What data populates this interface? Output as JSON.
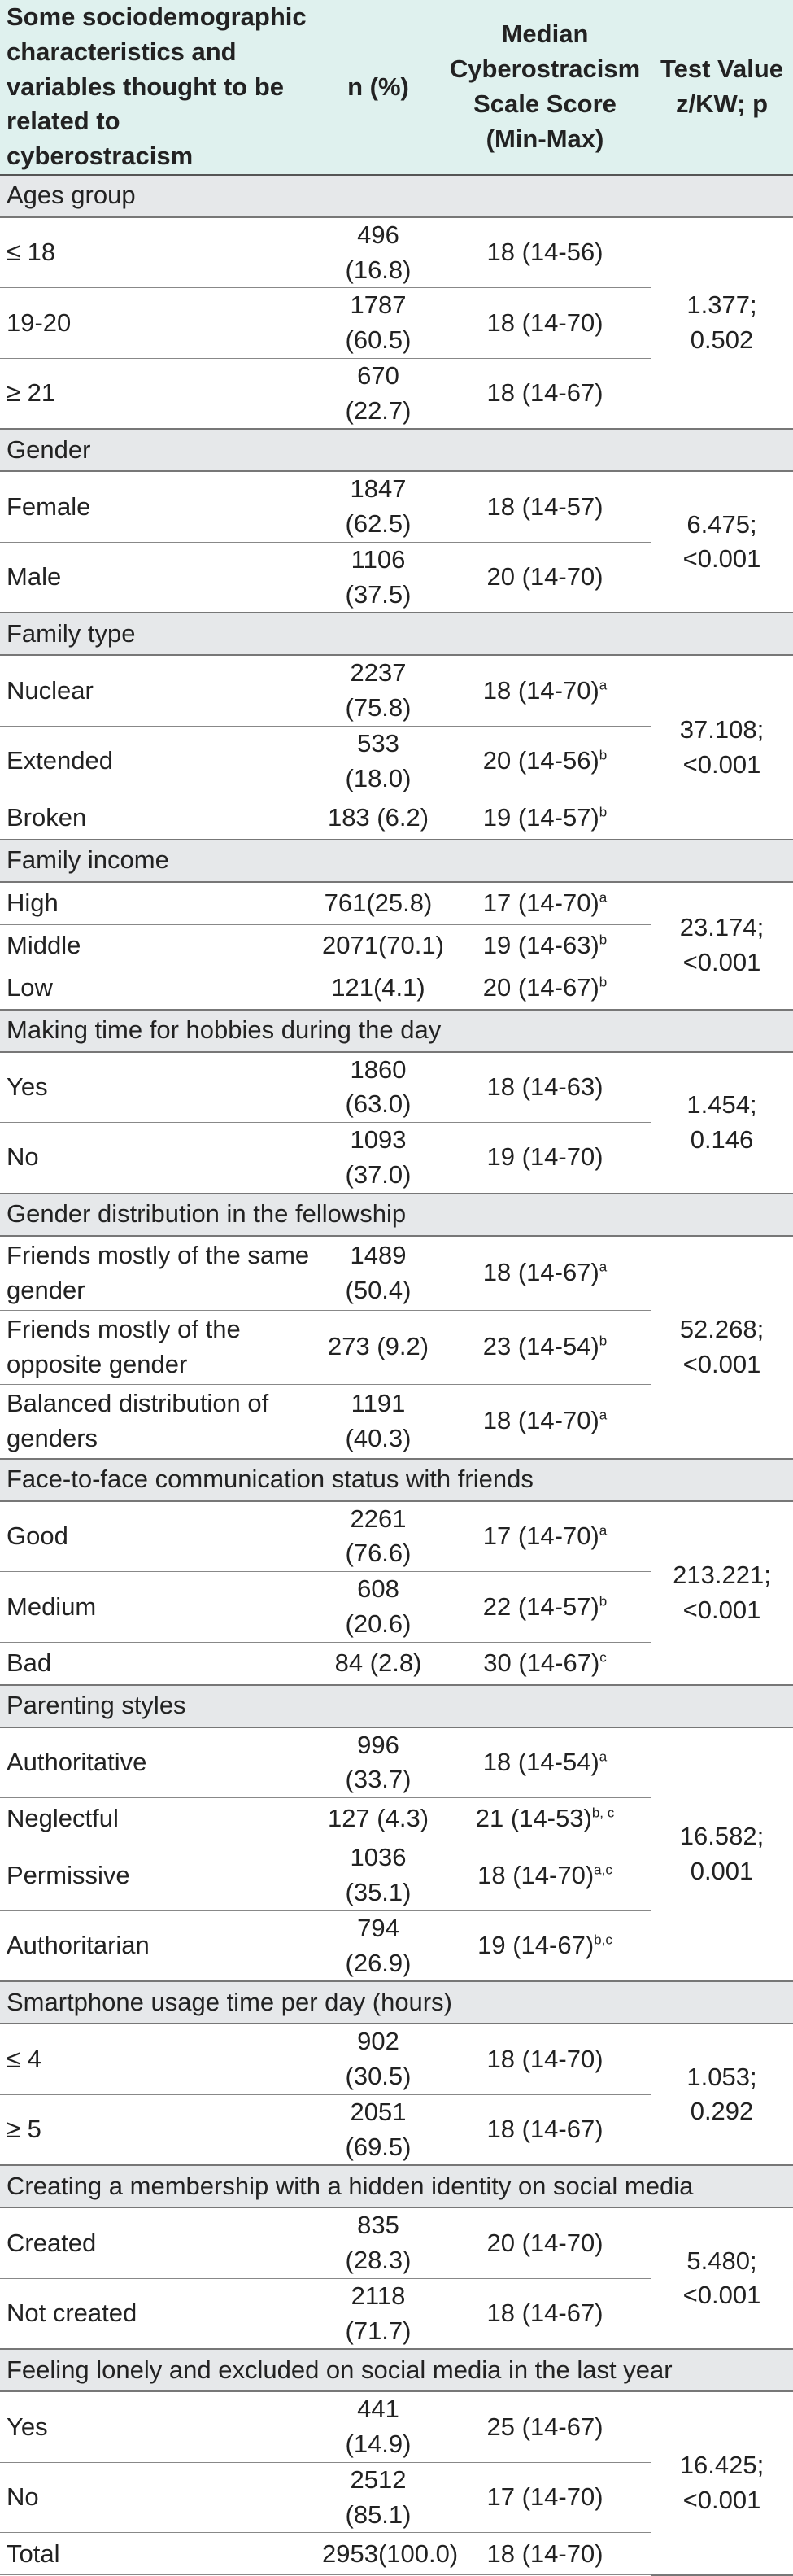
{
  "header": {
    "col1": "Some sociodemographic characteristics and variables thought to be related to cyberostracism",
    "col2": "n (%)",
    "col3": "Median Cyberostracism Scale Score (Min-Max)",
    "col4": "Test Value z/KW; p"
  },
  "groups": [
    {
      "title": "Ages group",
      "test": "1.377; 0.502",
      "rows": [
        {
          "label": "≤ 18",
          "n": "496 (16.8)",
          "median": "18 (14-56)",
          "sup": ""
        },
        {
          "label": "19-20",
          "n": "1787 (60.5)",
          "median": "18 (14-70)",
          "sup": ""
        },
        {
          "label": "≥ 21",
          "n": "670 (22.7)",
          "median": "18 (14-67)",
          "sup": ""
        }
      ]
    },
    {
      "title": "Gender",
      "test": "6.475;<0.001",
      "rows": [
        {
          "label": "Female",
          "n": "1847 (62.5)",
          "median": "18 (14-57)",
          "sup": ""
        },
        {
          "label": "Male",
          "n": "1106 (37.5)",
          "median": "20 (14-70)",
          "sup": ""
        }
      ]
    },
    {
      "title": "Family type",
      "test": "37.108;<0.001",
      "rows": [
        {
          "label": "Nuclear",
          "n": "2237 (75.8)",
          "median": "18 (14-70)",
          "sup": "a"
        },
        {
          "label": "Extended",
          "n": "533 (18.0)",
          "median": "20 (14-56)",
          "sup": "b"
        },
        {
          "label": "Broken",
          "n": "183 (6.2)",
          "median": "19 (14-57)",
          "sup": "b"
        }
      ]
    },
    {
      "title": "Family income",
      "test": "23.174;<0.001",
      "rows": [
        {
          "label": "High",
          "n": "761(25.8)",
          "median": "17 (14-70)",
          "sup": "a"
        },
        {
          "label": "Middle",
          "n": "2071(70.1)",
          "median": "19 (14-63)",
          "sup": "b"
        },
        {
          "label": "Low",
          "n": "121(4.1)",
          "median": "20 (14-67)",
          "sup": "b"
        }
      ]
    },
    {
      "title": "Making time for hobbies during the day",
      "test": "1.454; 0.146",
      "rows": [
        {
          "label": "Yes",
          "n": "1860 (63.0)",
          "median": "18 (14-63)",
          "sup": ""
        },
        {
          "label": "No",
          "n": "1093 (37.0)",
          "median": "19 (14-70)",
          "sup": ""
        }
      ]
    },
    {
      "title": "Gender distribution in the fellowship",
      "test": "52.268; <0.001",
      "rows": [
        {
          "label": "Friends mostly of the same gender",
          "n": "1489 (50.4)",
          "median": "18 (14-67)",
          "sup": "a",
          "tall": true
        },
        {
          "label": "Friends mostly of the opposite gender",
          "n": "273 (9.2)",
          "median": "23 (14-54)",
          "sup": "b",
          "tall": true
        },
        {
          "label": " Balanced distribution of genders",
          "n": "1191 (40.3)",
          "median": "18 (14-70)",
          "sup": "a",
          "tall": true
        }
      ]
    },
    {
      "title": "Face-to-face communication status with friends",
      "test": "213.221; <0.001",
      "rows": [
        {
          "label": "Good",
          "n": "2261 (76.6)",
          "median": "17 (14-70)",
          "sup": "a"
        },
        {
          "label": "Medium",
          "n": "608 (20.6)",
          "median": "22 (14-57)",
          "sup": "b"
        },
        {
          "label": "Bad",
          "n": "84 (2.8)",
          "median": "30 (14-67)",
          "sup": "c"
        }
      ]
    },
    {
      "title": "Parenting styles",
      "test": "16.582; 0.001",
      "rows": [
        {
          "label": "Authoritative",
          "n": "996 (33.7)",
          "median": "18 (14-54)",
          "sup": "a"
        },
        {
          "label": "Neglectful",
          "n": "127 (4.3)",
          "median": "21 (14-53)",
          "sup": "b, c"
        },
        {
          "label": "Permissive",
          "n": "1036 (35.1)",
          "median": "18 (14-70)",
          "sup": "a,c"
        },
        {
          "label": "Authoritarian",
          "n": "794 (26.9)",
          "median": "19 (14-67)",
          "sup": "b,c"
        }
      ]
    },
    {
      "title": "Smartphone usage time per day (hours)",
      "test": "1.053; 0.292",
      "rows": [
        {
          "label": "≤ 4",
          "n": "902 (30.5)",
          "median": "18 (14-70)",
          "sup": ""
        },
        {
          "label": "≥ 5",
          "n": "2051 (69.5)",
          "median": "18 (14-67)",
          "sup": ""
        }
      ]
    },
    {
      "title": "Creating a membership with a hidden identity on social media",
      "test": "5.480; <0.001",
      "rows": [
        {
          "label": "Created",
          "n": "835 (28.3)",
          "median": "20 (14-70)",
          "sup": ""
        },
        {
          "label": "Not created",
          "n": "2118 (71.7)",
          "median": "18 (14-67)",
          "sup": ""
        }
      ]
    },
    {
      "title": "Feeling lonely and excluded on social media in the last year",
      "test": "16.425; <0.001",
      "rows": [
        {
          "label": "Yes",
          "n": "441 (14.9)",
          "median": "25 (14-67)",
          "sup": ""
        },
        {
          "label": "No",
          "n": "2512 (85.1)",
          "median": "17 (14-70)",
          "sup": ""
        },
        {
          "label": "Total",
          "n": "2953(100.0)",
          "median": "18 (14-70)",
          "sup": ""
        }
      ]
    }
  ]
}
